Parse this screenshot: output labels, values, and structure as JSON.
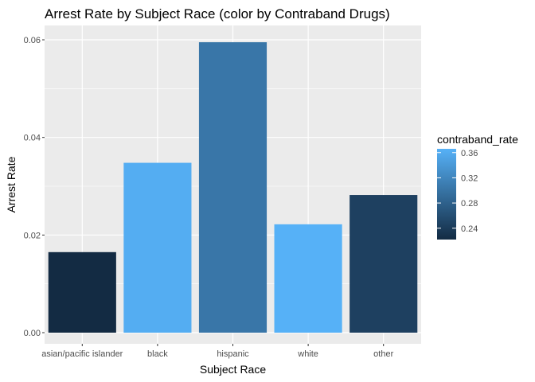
{
  "chart_data": {
    "type": "bar",
    "title": "Arrest Rate by Subject Race (color by Contraband Drugs)",
    "xlabel": "Subject Race",
    "ylabel": "Arrest Rate",
    "categories": [
      "asian/pacific islander",
      "black",
      "hispanic",
      "white",
      "other"
    ],
    "values": [
      0.0165,
      0.0348,
      0.0595,
      0.0222,
      0.0282
    ],
    "color_values": [
      0.222,
      0.362,
      0.303,
      0.366,
      0.245
    ],
    "color_variable": "contraband_rate",
    "color_scale": {
      "low": "#132B43",
      "high": "#56B1F7",
      "domain": [
        0.222,
        0.366
      ]
    },
    "ylim": [
      0,
      0.0625
    ],
    "yticks": [
      0.0,
      0.02,
      0.04,
      0.06
    ],
    "ytick_labels": [
      "0.00",
      "0.02",
      "0.04",
      "0.06"
    ],
    "legend": {
      "title": "contraband_rate",
      "breaks": [
        0.24,
        0.28,
        0.32,
        0.36
      ],
      "labels": [
        "0.24",
        "0.28",
        "0.32",
        "0.36"
      ],
      "position": "right"
    },
    "grid": true,
    "panel_background": "#EBEBEB"
  }
}
